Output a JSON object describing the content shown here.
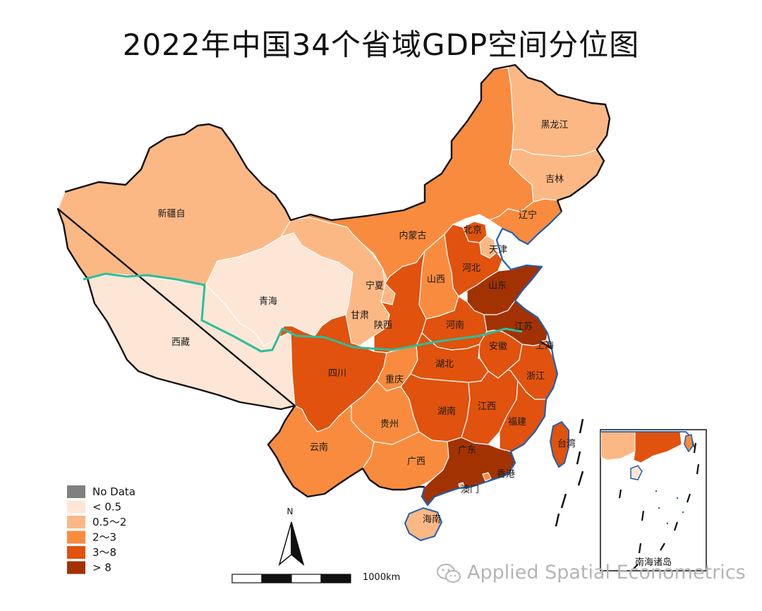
{
  "title": "2022年中国34个省域GDP空间分位图",
  "legend": {
    "items": [
      {
        "label": "No Data",
        "color": "#808080"
      },
      {
        "label": "< 0.5",
        "color": "#fde6d6"
      },
      {
        "label": "0.5～2",
        "color": "#fcb884"
      },
      {
        "label": "2～3",
        "color": "#f98b3e"
      },
      {
        "label": "3～8",
        "color": "#e0520e"
      },
      {
        "label": "> 8",
        "color": "#a33203"
      }
    ]
  },
  "regions": [
    {
      "name": "新疆自",
      "class": 1
    },
    {
      "name": "西藏",
      "class": 0
    },
    {
      "name": "青海",
      "class": 0
    },
    {
      "name": "内蒙古",
      "class": 2
    },
    {
      "name": "黑龙江",
      "class": 1
    },
    {
      "name": "吉林",
      "class": 1
    },
    {
      "name": "辽宁",
      "class": 2
    },
    {
      "name": "北京",
      "class": 3
    },
    {
      "name": "天津",
      "class": 1
    },
    {
      "name": "河北",
      "class": 3
    },
    {
      "name": "山东",
      "class": 4
    },
    {
      "name": "山西",
      "class": 2
    },
    {
      "name": "宁夏",
      "class": 1
    },
    {
      "name": "甘肃",
      "class": 1
    },
    {
      "name": "陕西",
      "class": 3
    },
    {
      "name": "河南",
      "class": 3
    },
    {
      "name": "江苏",
      "class": 4
    },
    {
      "name": "上海",
      "class": 3
    },
    {
      "name": "安徽",
      "class": 3
    },
    {
      "name": "四川",
      "class": 3
    },
    {
      "name": "重庆",
      "class": 2
    },
    {
      "name": "湖北",
      "class": 3
    },
    {
      "name": "浙江",
      "class": 3
    },
    {
      "name": "湖南",
      "class": 3
    },
    {
      "name": "江西",
      "class": 3
    },
    {
      "name": "贵州",
      "class": 2
    },
    {
      "name": "福建",
      "class": 3
    },
    {
      "name": "云南",
      "class": 2
    },
    {
      "name": "广西",
      "class": 2
    },
    {
      "name": "广东",
      "class": 4
    },
    {
      "name": "台湾",
      "class": 3
    },
    {
      "name": "香港",
      "class": 2
    },
    {
      "name": "澳门",
      "class": 1
    },
    {
      "name": "海南",
      "class": 1
    }
  ],
  "inset_label": "南海诸岛",
  "north_label": "N",
  "scale_label": "1000km",
  "watermark": "Applied Spatial Econometrics"
}
